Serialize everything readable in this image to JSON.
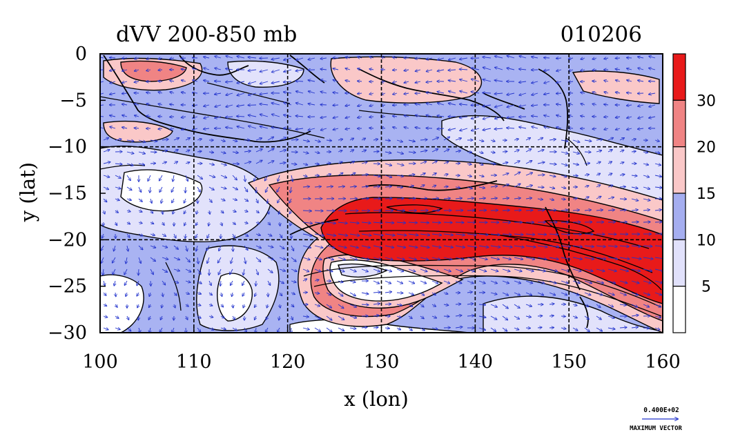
{
  "header": {
    "title": "dVV 200-850 mb",
    "date_code": "010206"
  },
  "chart_data": {
    "type": "map",
    "xlabel": "x (lon)",
    "ylabel": "y (lat)",
    "xlim": [
      100,
      160
    ],
    "ylim": [
      -30,
      0
    ],
    "x_ticks": [
      "100",
      "110",
      "120",
      "130",
      "140",
      "150",
      "160"
    ],
    "y_ticks": [
      "0",
      "−5",
      "−10",
      "−15",
      "−20",
      "−25",
      "−30"
    ],
    "grid": true,
    "colorbar": {
      "labels": [
        "30",
        "20",
        "15",
        "10",
        "5"
      ],
      "levels": [
        0,
        5,
        10,
        15,
        20,
        30,
        40
      ],
      "colors": [
        "#ffffff",
        "#e1e1fb",
        "#a5aef0",
        "#fac8c8",
        "#f08484",
        "#e81a1a"
      ]
    },
    "legend": {
      "vector_value": "0.400E+02",
      "vector_caption": "MAXIMUM VECTOR"
    }
  }
}
